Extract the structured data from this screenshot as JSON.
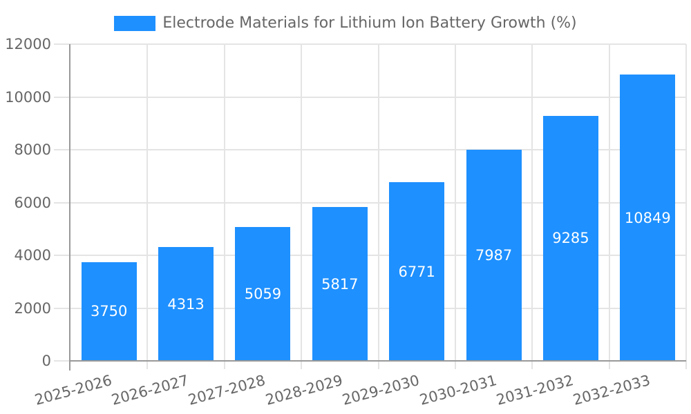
{
  "legend": {
    "label": "Electrode Materials for Lithium Ion Battery Growth (%)"
  },
  "colors": {
    "bar": "#1E90FF",
    "grid": "#E4E4E4",
    "axis": "#999999",
    "tick_label": "#666666",
    "legend_text": "#666666",
    "value_label": "#FFFFFF",
    "background": "#FFFFFF"
  },
  "chart_data": {
    "type": "bar",
    "title": "Electrode Materials for Lithium Ion Battery Growth (%)",
    "categories": [
      "2025-2026",
      "2026-2027",
      "2027-2028",
      "2028-2029",
      "2029-2030",
      "2030-2031",
      "2031-2032",
      "2032-2033"
    ],
    "values": [
      3750,
      4313,
      5059,
      5817,
      6771,
      7987,
      9285,
      10849
    ],
    "xlabel": "",
    "ylabel": "",
    "ylim": [
      0,
      12000
    ],
    "yticks": [
      0,
      2000,
      4000,
      6000,
      8000,
      10000,
      12000
    ],
    "grid": true,
    "legend_position": "top-center",
    "value_labels_position": "inside-center",
    "x_label_rotation_deg": 15
  }
}
